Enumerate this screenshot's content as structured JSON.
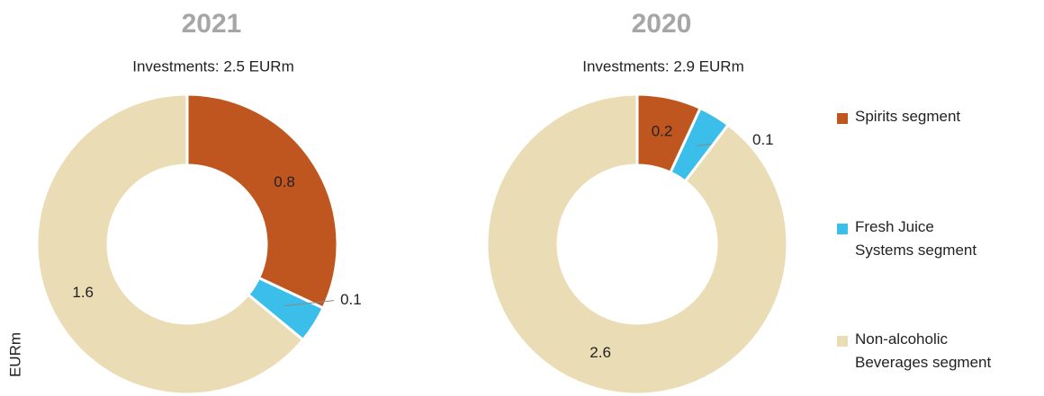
{
  "chart_data": [
    {
      "type": "donut",
      "title": "2021",
      "subtitle": "Investments: 2.5 EURm",
      "ylabel": "EURm",
      "categories": [
        "Spirits segment",
        "Fresh Juice Systems segment",
        "Non-alcoholic Beverages segment"
      ],
      "values": [
        0.8,
        0.1,
        1.6
      ],
      "colors": [
        "#c0561f",
        "#3bbfea",
        "#eadcb5"
      ]
    },
    {
      "type": "donut",
      "title": "2020",
      "subtitle": "Investments: 2.9 EURm",
      "categories": [
        "Spirits segment",
        "Fresh Juice Systems segment",
        "Non-alcoholic Beverages segment"
      ],
      "values": [
        0.2,
        0.1,
        2.6
      ],
      "colors": [
        "#c0561f",
        "#3bbfea",
        "#eadcb5"
      ]
    }
  ]
}
